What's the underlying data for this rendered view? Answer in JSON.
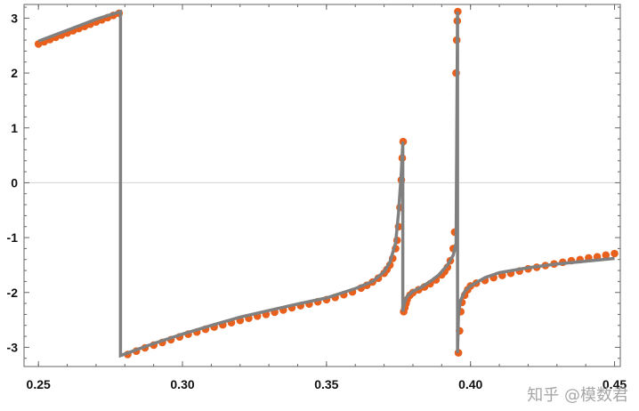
{
  "chart_data": {
    "type": "scatter",
    "title": "",
    "xlabel": "",
    "ylabel": "",
    "xlim": [
      0.245,
      0.452
    ],
    "ylim": [
      -3.35,
      3.25
    ],
    "grid": false,
    "zero_line": true,
    "x_ticks": [
      0.25,
      0.3,
      0.35,
      0.4,
      0.45
    ],
    "x_tick_labels": [
      "0.25",
      "0.30",
      "0.35",
      "0.40",
      "0.45"
    ],
    "y_ticks": [
      -3,
      -2,
      -1,
      0,
      1,
      2,
      3
    ],
    "y_tick_labels": [
      "-3",
      "-2",
      "-1",
      "0",
      "1",
      "2",
      "3"
    ],
    "colors": {
      "points": "#e8601c",
      "line": "#808080",
      "zero": "#d3d3d3",
      "frame": "#666666"
    },
    "series": [
      {
        "kind": "line",
        "x": [
          0.25,
          0.26,
          0.27,
          0.2785,
          0.2785,
          0.29,
          0.3,
          0.31,
          0.32,
          0.33,
          0.34,
          0.35,
          0.36,
          0.366,
          0.37,
          0.372,
          0.374,
          0.375,
          0.376,
          0.3765,
          0.3765,
          0.377,
          0.378,
          0.38,
          0.383,
          0.386,
          0.389,
          0.392,
          0.394,
          0.395,
          0.3955,
          0.3955,
          0.3958,
          0.3965,
          0.398,
          0.4,
          0.405,
          0.41,
          0.42,
          0.43,
          0.44,
          0.45
        ],
        "y": [
          2.58,
          2.78,
          2.98,
          3.12,
          -3.15,
          -2.93,
          -2.76,
          -2.6,
          -2.45,
          -2.33,
          -2.21,
          -2.1,
          -1.93,
          -1.8,
          -1.62,
          -1.45,
          -1.1,
          -0.55,
          0.2,
          0.75,
          -2.35,
          -2.2,
          -2.07,
          -1.98,
          -1.9,
          -1.8,
          -1.68,
          -1.5,
          -1.32,
          -1.1,
          3.12,
          -3.1,
          -2.4,
          -2.15,
          -1.98,
          -1.88,
          -1.73,
          -1.64,
          -1.55,
          -1.48,
          -1.43,
          -1.38
        ]
      },
      {
        "kind": "scatter",
        "x": [
          0.25,
          0.252,
          0.254,
          0.256,
          0.258,
          0.26,
          0.262,
          0.264,
          0.266,
          0.268,
          0.27,
          0.272,
          0.274,
          0.276,
          0.278,
          0.281,
          0.284,
          0.287,
          0.29,
          0.293,
          0.296,
          0.299,
          0.302,
          0.305,
          0.308,
          0.311,
          0.314,
          0.317,
          0.32,
          0.323,
          0.326,
          0.329,
          0.332,
          0.335,
          0.338,
          0.341,
          0.344,
          0.347,
          0.35,
          0.353,
          0.356,
          0.359,
          0.362,
          0.364,
          0.366,
          0.368,
          0.37,
          0.371,
          0.372,
          0.373,
          0.374,
          0.3745,
          0.375,
          0.3755,
          0.376,
          0.3763,
          0.3766,
          0.3768,
          0.3772,
          0.3776,
          0.378,
          0.379,
          0.38,
          0.382,
          0.384,
          0.386,
          0.388,
          0.39,
          0.391,
          0.392,
          0.393,
          0.394,
          0.3945,
          0.395,
          0.3952,
          0.3954,
          0.3956,
          0.3958,
          0.3962,
          0.3966,
          0.397,
          0.398,
          0.399,
          0.4,
          0.402,
          0.405,
          0.408,
          0.411,
          0.414,
          0.417,
          0.42,
          0.423,
          0.426,
          0.429,
          0.432,
          0.435,
          0.438,
          0.441,
          0.444,
          0.447,
          0.45
        ],
        "y": [
          2.53,
          2.57,
          2.61,
          2.65,
          2.69,
          2.73,
          2.77,
          2.81,
          2.85,
          2.89,
          2.93,
          2.97,
          3.01,
          3.05,
          3.09,
          -3.13,
          -3.07,
          -3.01,
          -2.96,
          -2.91,
          -2.86,
          -2.81,
          -2.76,
          -2.72,
          -2.67,
          -2.63,
          -2.59,
          -2.55,
          -2.51,
          -2.47,
          -2.43,
          -2.4,
          -2.36,
          -2.32,
          -2.28,
          -2.24,
          -2.21,
          -2.17,
          -2.13,
          -2.09,
          -2.04,
          -1.99,
          -1.92,
          -1.87,
          -1.81,
          -1.74,
          -1.65,
          -1.58,
          -1.5,
          -1.38,
          -1.2,
          -1.05,
          -0.8,
          -0.45,
          0.05,
          0.45,
          0.75,
          -2.35,
          -2.28,
          -2.2,
          -2.13,
          -2.05,
          -2.0,
          -1.95,
          -1.9,
          -1.84,
          -1.77,
          -1.68,
          -1.62,
          -1.54,
          -1.42,
          -1.2,
          -0.9,
          2.0,
          2.6,
          2.95,
          3.12,
          -3.1,
          -2.7,
          -2.35,
          -2.18,
          -2.05,
          -1.95,
          -1.88,
          -1.83,
          -1.78,
          -1.73,
          -1.69,
          -1.65,
          -1.61,
          -1.57,
          -1.54,
          -1.51,
          -1.48,
          -1.45,
          -1.42,
          -1.4,
          -1.37,
          -1.35,
          -1.32,
          -1.29
        ]
      }
    ]
  },
  "watermark": "知乎 @模数君"
}
